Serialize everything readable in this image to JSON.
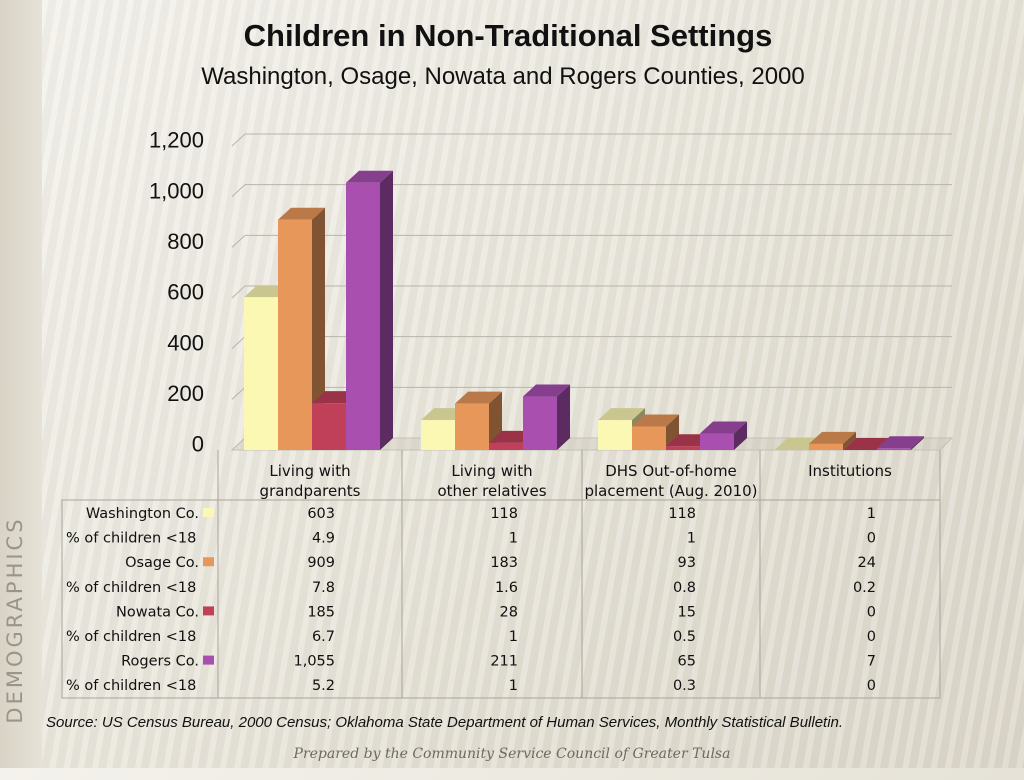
{
  "title": "Children in Non-Traditional Settings",
  "subtitle": "Washington, Osage, Nowata and Rogers Counties, 2000",
  "side_label": "DEMOGRAPHICS",
  "source": "Source:  US Census Bureau, 2000 Census; Oklahoma State Department of Human Services, Monthly Statistical Bulletin.",
  "footer": "Prepared by the Community Service Council of Greater Tulsa",
  "chart_data": {
    "type": "bar",
    "title": "Children in Non-Traditional Settings",
    "subtitle": "Washington, Osage, Nowata and Rogers Counties, 2000",
    "categories": [
      [
        "Living with",
        "grandparents"
      ],
      [
        "Living with",
        "other relatives"
      ],
      [
        "DHS Out-of-home",
        "placement (Aug. 2010)"
      ],
      [
        "Institutions"
      ]
    ],
    "ylim": [
      0,
      1200
    ],
    "yticks": [
      "0",
      "200",
      "400",
      "600",
      "800",
      "1,000",
      "1,200"
    ],
    "grid": true,
    "style": "3d-clustered-bar-with-data-table",
    "series": [
      {
        "name": "Washington Co.",
        "color": "#fbf8b4",
        "values": [
          603,
          118,
          118,
          1
        ],
        "labels": [
          "603",
          "118",
          "118",
          "1"
        ]
      },
      {
        "name": "Osage Co.",
        "color": "#e8975a",
        "values": [
          909,
          183,
          93,
          24
        ],
        "labels": [
          "909",
          "183",
          "93",
          "24"
        ]
      },
      {
        "name": "Nowata Co.",
        "color": "#c0405a",
        "values": [
          185,
          28,
          15,
          0
        ],
        "labels": [
          "185",
          "28",
          "15",
          "0"
        ]
      },
      {
        "name": "Rogers Co.",
        "color": "#a84fb0",
        "values": [
          1055,
          211,
          65,
          7
        ],
        "labels": [
          "1,055",
          "211",
          "65",
          "7"
        ]
      }
    ],
    "percent_row_label": "% of children <18",
    "percent_rows": [
      [
        "4.9",
        "1",
        "1",
        "0"
      ],
      [
        "7.8",
        "1.6",
        "0.8",
        "0.2"
      ],
      [
        "6.7",
        "1",
        "0.5",
        "0"
      ],
      [
        "5.2",
        "1",
        "0.3",
        "0"
      ]
    ]
  }
}
